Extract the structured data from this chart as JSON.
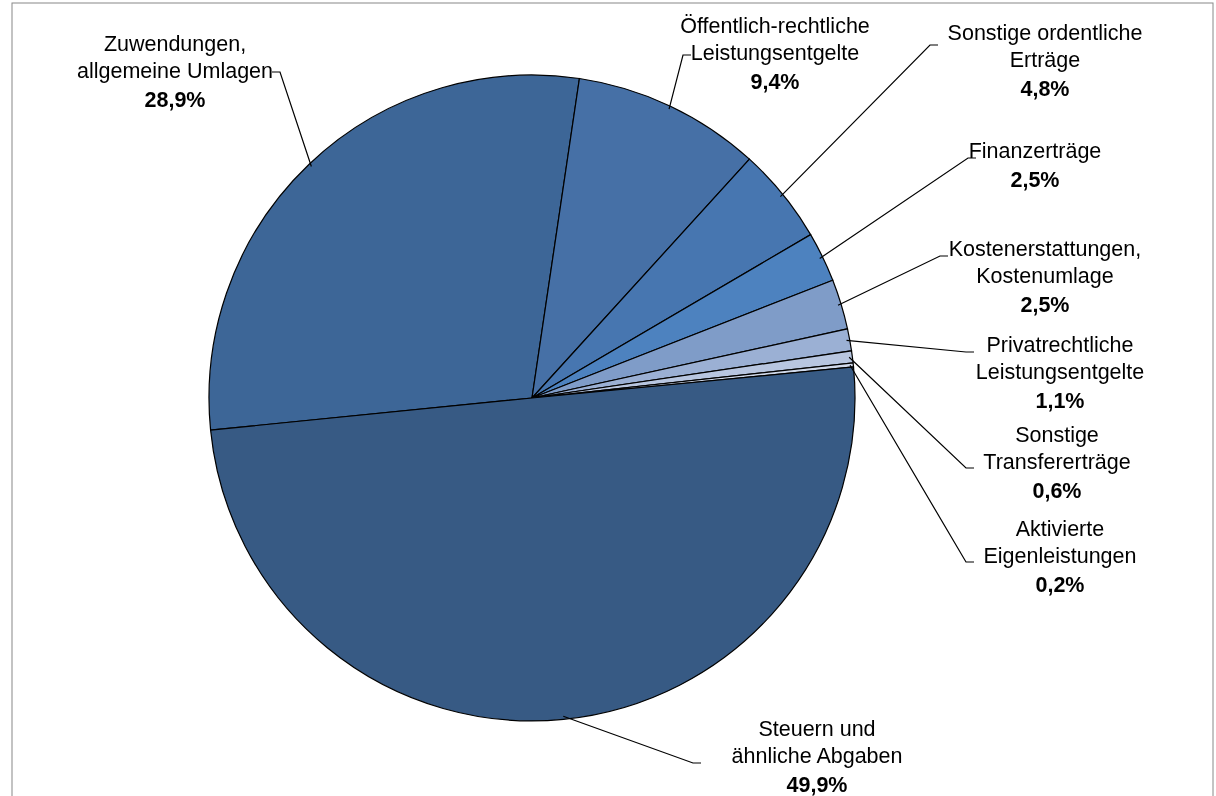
{
  "chart_data": {
    "type": "pie",
    "categories": [
      "Zuwendungen,\nallgemeine Umlagen",
      "Öffentlich-rechtliche\nLeistungsentgelte",
      "Sonstige ordentliche\nErträge",
      "Finanzerträge",
      "Kostenerstattungen,\nKostenumlage",
      "Privatrechtliche\nLeistungsentgelte",
      "Sonstige\nTransfererträge",
      "Aktivierte\nEigenleistungen",
      "Steuern und\nähnliche Abgaben"
    ],
    "values": [
      28.9,
      9.4,
      4.8,
      2.5,
      2.5,
      1.1,
      0.6,
      0.2,
      49.9
    ],
    "colors": [
      "#3d6697",
      "#4670a6",
      "#4776b0",
      "#4d82bf",
      "#7f9cc8",
      "#9bb0d4",
      "#b8c6e0",
      "#d0d9ea",
      "#375a84"
    ],
    "value_labels": [
      "28,9%",
      "9,4%",
      "4,8%",
      "2,5%",
      "2,5%",
      "1,1%",
      "0,6%",
      "0,2%",
      "49,9%"
    ]
  }
}
